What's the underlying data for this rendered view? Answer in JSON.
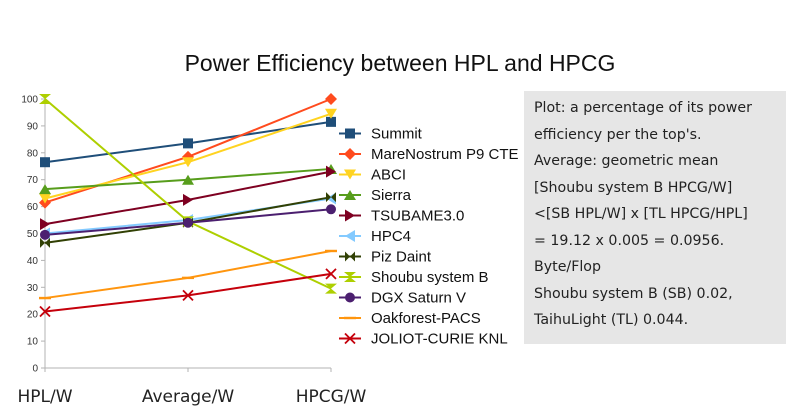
{
  "chart_data": {
    "type": "line",
    "title": "Power Efficiency between HPL and HPCG",
    "categories": [
      "HPL/W",
      "Average/W",
      "HPCG/W"
    ],
    "ylim": [
      0,
      100
    ],
    "yticks": [
      0,
      10,
      20,
      30,
      40,
      50,
      60,
      70,
      80,
      90,
      100
    ],
    "grid": false,
    "legend_position": "right",
    "series": [
      {
        "name": "Summit",
        "values": [
          76.5,
          83.5,
          91.5
        ],
        "color": "#1f4e79",
        "marker": "square"
      },
      {
        "name": "MareNostrum P9 CTE",
        "values": [
          61.5,
          78.5,
          100
        ],
        "color": "#ff4b1e",
        "marker": "diamond"
      },
      {
        "name": "ABCI",
        "values": [
          63,
          76.5,
          94.5
        ],
        "color": "#ffd320",
        "marker": "triangle-down"
      },
      {
        "name": "Sierra",
        "values": [
          66.5,
          70,
          74
        ],
        "color": "#579d1c",
        "marker": "triangle-up"
      },
      {
        "name": "TSUBAME3.0",
        "values": [
          53.5,
          62.5,
          73
        ],
        "color": "#7e0021",
        "marker": "triangle-right"
      },
      {
        "name": "HPC4",
        "values": [
          50,
          55,
          63
        ],
        "color": "#83caff",
        "marker": "triangle-left"
      },
      {
        "name": "Piz Daint",
        "values": [
          46.5,
          54,
          63.5
        ],
        "color": "#314004",
        "marker": "bowtie"
      },
      {
        "name": "Shoubu system B",
        "values": [
          100,
          54.5,
          29.5
        ],
        "color": "#aecf00",
        "marker": "hourglass"
      },
      {
        "name": "DGX Saturn V",
        "values": [
          49.5,
          54,
          59
        ],
        "color": "#4b1f6f",
        "marker": "circle"
      },
      {
        "name": "Oakforest-PACS",
        "values": [
          26,
          33.5,
          43.5
        ],
        "color": "#ff950e",
        "marker": "dash"
      },
      {
        "name": "JOLIOT-CURIE KNL",
        "values": [
          21,
          27,
          35
        ],
        "color": "#c5000b",
        "marker": "x"
      }
    ]
  },
  "note": {
    "lines": [
      "Plot: a percentage of its power",
      "efficiency per the top's.",
      "Average: geometric mean",
      "[Shoubu system B HPCG/W]",
      "<[SB HPL/W] x [TL HPCG/HPL]",
      "= 19.12 x 0.005 = 0.0956.",
      "Byte/Flop",
      "Shoubu system B (SB) 0.02,",
      "TaihuLight (TL) 0.044."
    ]
  }
}
